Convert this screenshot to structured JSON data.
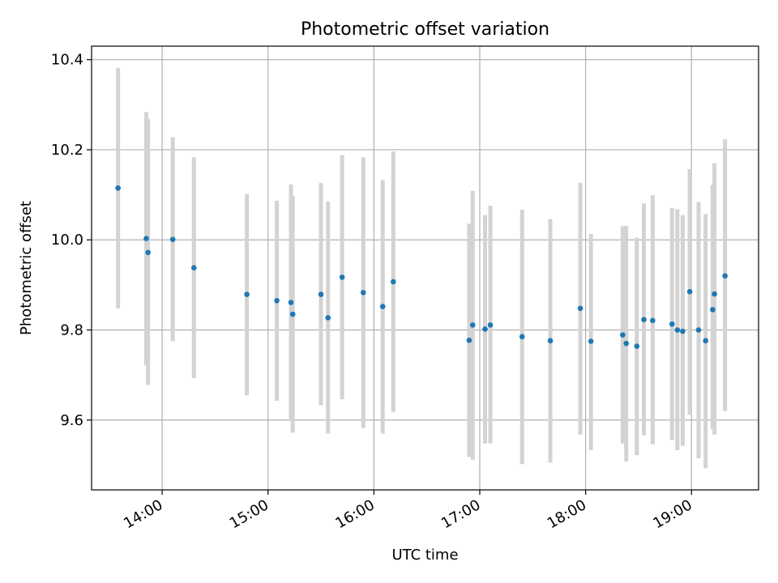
{
  "colors": {
    "point": "#1f77b4",
    "errorbar": "#d3d3d3",
    "grid": "#b0b0b0",
    "axis": "#000000",
    "background": "#ffffff"
  },
  "chart_data": {
    "type": "scatter",
    "title": "Photometric offset variation",
    "xlabel": "UTC time",
    "ylabel": "Photometric offset",
    "xlim": [
      "13:20",
      "19:38"
    ],
    "ylim": [
      9.445,
      10.43
    ],
    "x_ticks": [
      "14:00",
      "15:00",
      "16:00",
      "17:00",
      "18:00",
      "19:00"
    ],
    "y_ticks": [
      "9.6",
      "9.8",
      "10.0",
      "10.2",
      "10.4"
    ],
    "grid": true,
    "legend": "none",
    "points": [
      {
        "x": "13:35",
        "y": 10.115,
        "yerr_low": 9.848,
        "yerr_high": 10.382
      },
      {
        "x": "13:51",
        "y": 10.003,
        "yerr_low": 9.722,
        "yerr_high": 10.284
      },
      {
        "x": "13:52",
        "y": 9.972,
        "yerr_low": 9.678,
        "yerr_high": 10.268
      },
      {
        "x": "14:06",
        "y": 10.001,
        "yerr_low": 9.775,
        "yerr_high": 10.228
      },
      {
        "x": "14:18",
        "y": 9.938,
        "yerr_low": 9.693,
        "yerr_high": 10.183
      },
      {
        "x": "14:48",
        "y": 9.879,
        "yerr_low": 9.655,
        "yerr_high": 10.102
      },
      {
        "x": "15:05",
        "y": 9.865,
        "yerr_low": 9.643,
        "yerr_high": 10.087
      },
      {
        "x": "15:13",
        "y": 9.861,
        "yerr_low": 9.598,
        "yerr_high": 10.123
      },
      {
        "x": "15:14",
        "y": 9.835,
        "yerr_low": 9.572,
        "yerr_high": 10.098
      },
      {
        "x": "15:30",
        "y": 9.879,
        "yerr_low": 9.633,
        "yerr_high": 10.126
      },
      {
        "x": "15:34",
        "y": 9.827,
        "yerr_low": 9.57,
        "yerr_high": 10.085
      },
      {
        "x": "15:42",
        "y": 9.917,
        "yerr_low": 9.646,
        "yerr_high": 10.188
      },
      {
        "x": "15:54",
        "y": 9.883,
        "yerr_low": 9.582,
        "yerr_high": 10.183
      },
      {
        "x": "16:05",
        "y": 9.852,
        "yerr_low": 9.57,
        "yerr_high": 10.133
      },
      {
        "x": "16:11",
        "y": 9.907,
        "yerr_low": 9.618,
        "yerr_high": 10.196
      },
      {
        "x": "16:54",
        "y": 9.777,
        "yerr_low": 9.518,
        "yerr_high": 10.036
      },
      {
        "x": "16:56",
        "y": 9.811,
        "yerr_low": 9.512,
        "yerr_high": 10.109
      },
      {
        "x": "17:03",
        "y": 9.802,
        "yerr_low": 9.548,
        "yerr_high": 10.055
      },
      {
        "x": "17:06",
        "y": 9.811,
        "yerr_low": 9.548,
        "yerr_high": 10.076
      },
      {
        "x": "17:24",
        "y": 9.785,
        "yerr_low": 9.502,
        "yerr_high": 10.067
      },
      {
        "x": "17:40",
        "y": 9.776,
        "yerr_low": 9.506,
        "yerr_high": 10.046
      },
      {
        "x": "17:57",
        "y": 9.848,
        "yerr_low": 9.568,
        "yerr_high": 10.127
      },
      {
        "x": "18:03",
        "y": 9.775,
        "yerr_low": 9.533,
        "yerr_high": 10.013
      },
      {
        "x": "18:21",
        "y": 9.789,
        "yerr_low": 9.548,
        "yerr_high": 10.03
      },
      {
        "x": "18:23",
        "y": 9.77,
        "yerr_low": 9.508,
        "yerr_high": 10.031
      },
      {
        "x": "18:29",
        "y": 9.764,
        "yerr_low": 9.522,
        "yerr_high": 10.005
      },
      {
        "x": "18:33",
        "y": 9.823,
        "yerr_low": 9.566,
        "yerr_high": 10.081
      },
      {
        "x": "18:38",
        "y": 9.821,
        "yerr_low": 9.546,
        "yerr_high": 10.099
      },
      {
        "x": "18:49",
        "y": 9.813,
        "yerr_low": 9.556,
        "yerr_high": 10.071
      },
      {
        "x": "18:52",
        "y": 9.8,
        "yerr_low": 9.533,
        "yerr_high": 10.068
      },
      {
        "x": "18:55",
        "y": 9.797,
        "yerr_low": 9.543,
        "yerr_high": 10.055
      },
      {
        "x": "18:59",
        "y": 9.885,
        "yerr_low": 9.612,
        "yerr_high": 10.157
      },
      {
        "x": "19:04",
        "y": 9.8,
        "yerr_low": 9.515,
        "yerr_high": 10.084
      },
      {
        "x": "19:08",
        "y": 9.776,
        "yerr_low": 9.493,
        "yerr_high": 10.057
      },
      {
        "x": "19:12",
        "y": 9.845,
        "yerr_low": 9.58,
        "yerr_high": 10.122
      },
      {
        "x": "19:13",
        "y": 9.88,
        "yerr_low": 9.568,
        "yerr_high": 10.17
      },
      {
        "x": "19:19",
        "y": 9.92,
        "yerr_low": 9.62,
        "yerr_high": 10.223
      }
    ]
  }
}
